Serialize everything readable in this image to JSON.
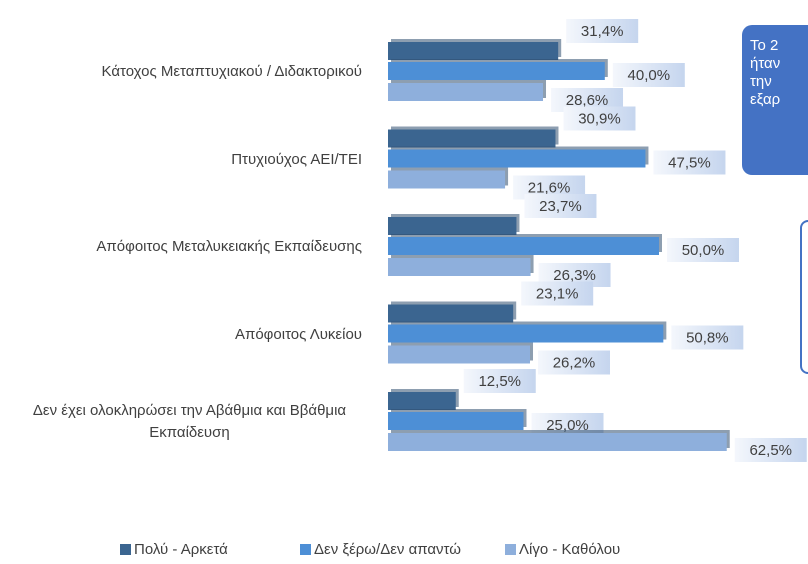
{
  "chart_data": {
    "type": "hbar",
    "categories": [
      "Κάτοχος Μεταπτυχιακού / Διδακτορικού",
      "Πτυχιούχος ΑΕΙ/ΤΕΙ",
      "Απόφοιτος Μεταλυκειακής Εκπαίδευσης",
      "Απόφοιτος Λυκείου",
      "Δεν έχει ολοκληρώσει την Αβάθμια και Ββάθμια Εκπαίδευση"
    ],
    "series": [
      {
        "name": "Πολύ - Αρκετά",
        "color": "#3b6590",
        "values": [
          31.4,
          30.9,
          23.7,
          23.1,
          12.5
        ],
        "value_labels": [
          "31,4%",
          "30,9%",
          "23,7%",
          "23,1%",
          "12,5%"
        ]
      },
      {
        "name": "Δεν ξέρω/Δεν απαντώ",
        "color": "#4d8fd6",
        "values": [
          40.0,
          47.5,
          50.0,
          50.8,
          25.0
        ],
        "value_labels": [
          "40,0%",
          "47,5%",
          "50,0%",
          "50,8%",
          "25,0%"
        ]
      },
      {
        "name": "Λίγο - Καθόλου",
        "color": "#8eafdc",
        "values": [
          28.6,
          21.6,
          26.3,
          26.2,
          62.5
        ],
        "value_labels": [
          "28,6%",
          "21,6%",
          "26,3%",
          "26,2%",
          "62,5%"
        ]
      }
    ],
    "legend": "bottom",
    "annotations": [
      "Το 2",
      "ήταν",
      "την",
      "εξαρ"
    ]
  }
}
